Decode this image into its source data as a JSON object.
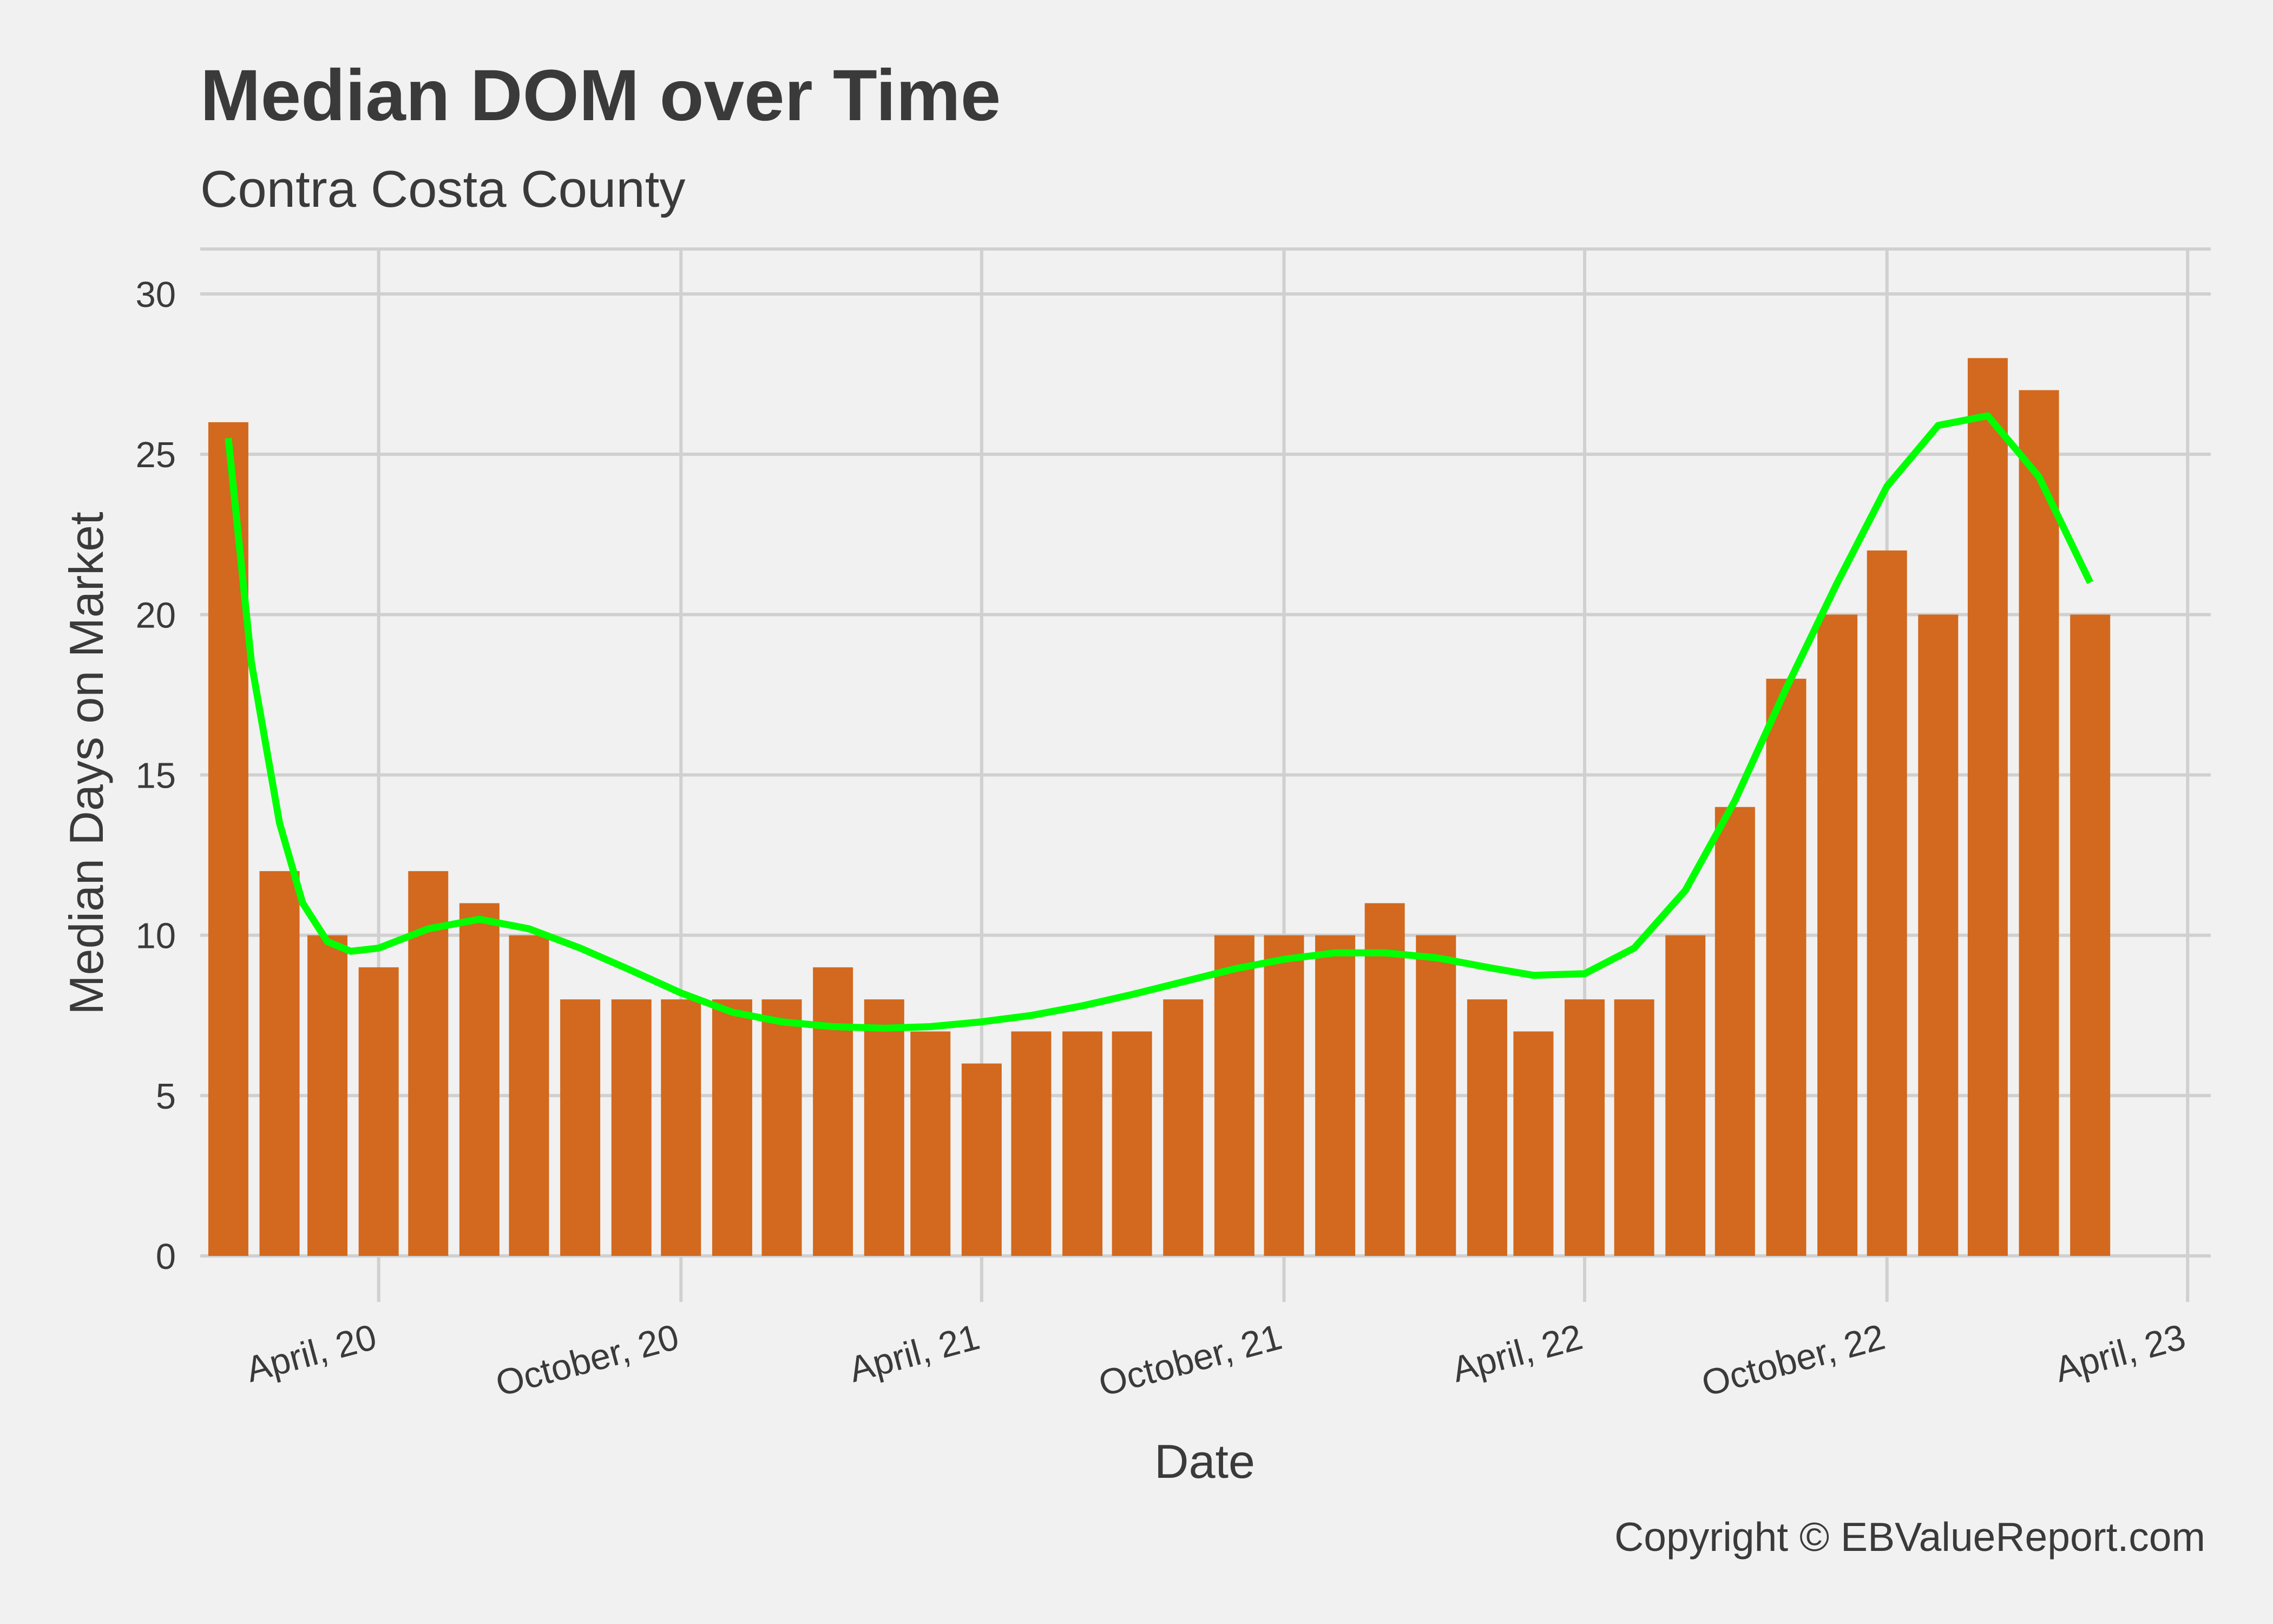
{
  "chart_data": {
    "type": "bar",
    "title": "Median DOM over Time",
    "subtitle": "Contra Costa County",
    "xlabel": "Date",
    "ylabel": "Median Days on Market",
    "caption": "Copyright  © EBValueReport.com",
    "ylim": [
      0,
      30
    ],
    "yticks": [
      "0",
      "5",
      "10",
      "15",
      "20",
      "25",
      "30"
    ],
    "xlim": [
      "2019-12-15",
      "2023-04-15"
    ],
    "xticks": [
      {
        "date": "2020-04-01",
        "label": "April, 20"
      },
      {
        "date": "2020-10-01",
        "label": "October, 20"
      },
      {
        "date": "2021-04-01",
        "label": "April, 21"
      },
      {
        "date": "2021-10-01",
        "label": "October, 21"
      },
      {
        "date": "2022-04-01",
        "label": "April, 22"
      },
      {
        "date": "2022-10-01",
        "label": "October, 22"
      },
      {
        "date": "2023-04-01",
        "label": "April, 23"
      }
    ],
    "grid": true,
    "bar_color": "#d2691e",
    "trend_color": "#00ff00",
    "series": [
      {
        "type": "bar",
        "x": [
          "2020-01-01",
          "2020-02-01",
          "2020-03-01",
          "2020-04-01",
          "2020-05-01",
          "2020-06-01",
          "2020-07-01",
          "2020-08-01",
          "2020-09-01",
          "2020-10-01",
          "2020-11-01",
          "2020-12-01",
          "2021-01-01",
          "2021-02-01",
          "2021-03-01",
          "2021-04-01",
          "2021-05-01",
          "2021-06-01",
          "2021-07-01",
          "2021-08-01",
          "2021-09-01",
          "2021-10-01",
          "2021-11-01",
          "2021-12-01",
          "2022-01-01",
          "2022-02-01",
          "2022-03-01",
          "2022-04-01",
          "2022-05-01",
          "2022-06-01",
          "2022-07-01",
          "2022-08-01",
          "2022-09-01",
          "2022-10-01",
          "2022-11-01",
          "2022-12-01",
          "2023-01-01",
          "2023-02-01"
        ],
        "values": [
          26,
          12,
          10,
          9,
          12,
          11,
          10,
          8,
          8,
          8,
          8,
          8,
          9,
          8,
          7,
          6,
          7,
          7,
          7,
          8,
          10,
          10,
          10,
          11,
          10,
          8,
          7,
          8,
          8,
          10,
          14,
          18,
          20,
          22,
          20,
          28,
          27,
          20
        ]
      },
      {
        "type": "line",
        "x": [
          "2020-01-01",
          "2020-01-15",
          "2020-02-01",
          "2020-02-15",
          "2020-03-01",
          "2020-03-15",
          "2020-04-01",
          "2020-05-01",
          "2020-06-01",
          "2020-07-01",
          "2020-08-01",
          "2020-09-01",
          "2020-10-01",
          "2020-11-01",
          "2020-12-01",
          "2021-01-01",
          "2021-02-01",
          "2021-03-01",
          "2021-04-01",
          "2021-05-01",
          "2021-06-01",
          "2021-07-01",
          "2021-08-01",
          "2021-09-01",
          "2021-10-01",
          "2021-11-01",
          "2021-12-01",
          "2022-01-01",
          "2022-02-01",
          "2022-03-01",
          "2022-04-01",
          "2022-05-01",
          "2022-06-01",
          "2022-07-01",
          "2022-08-01",
          "2022-09-01",
          "2022-10-01",
          "2022-11-01",
          "2022-12-01",
          "2023-01-01",
          "2023-02-01"
        ],
        "values": [
          25.5,
          18.5,
          13.5,
          11.0,
          9.8,
          9.5,
          9.6,
          10.2,
          10.5,
          10.2,
          9.6,
          8.9,
          8.2,
          7.6,
          7.3,
          7.15,
          7.1,
          7.15,
          7.3,
          7.5,
          7.8,
          8.15,
          8.55,
          8.95,
          9.25,
          9.45,
          9.45,
          9.3,
          9.0,
          8.75,
          8.8,
          9.6,
          11.4,
          14.2,
          17.7,
          21.0,
          24.0,
          25.9,
          26.2,
          24.3,
          21.0
        ]
      }
    ]
  }
}
